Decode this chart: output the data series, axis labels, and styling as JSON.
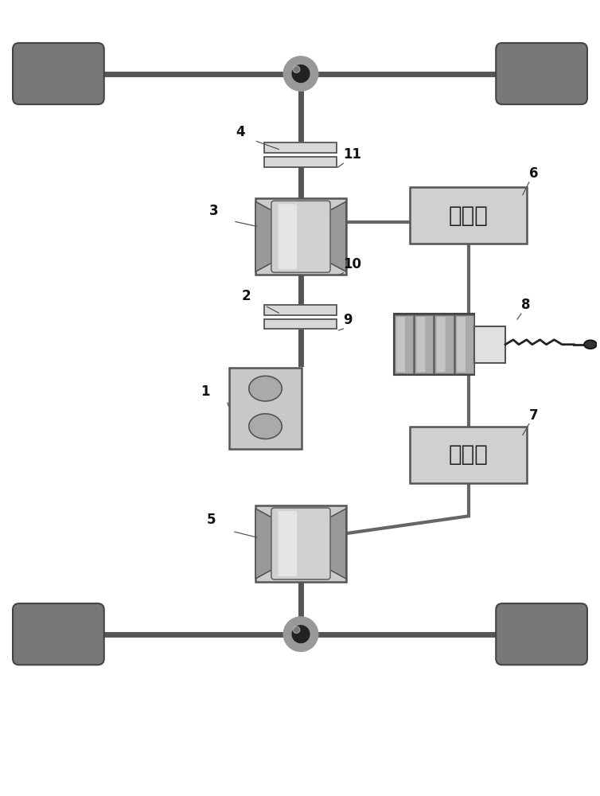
{
  "bg_color": "#ffffff",
  "wheel_color": "#787878",
  "axle_color": "#555555",
  "inverter_label": "逆变器",
  "shaft_color": "#555555",
  "wire_color": "#666666",
  "border_color": "#555555",
  "motor_box_color": "#cccccc",
  "motor_magnet_color": "#999999",
  "motor_rotor_color": "#d0d0d0",
  "clutch_color": "#d8d8d8",
  "inverter_color": "#d0d0d0",
  "engine_color": "#c8c8c8",
  "engine_oval_color": "#aaaaaa",
  "gen_dark": "#505050",
  "gen_coil": "#aaaaaa",
  "gen_term": "#e0e0e0",
  "diff_outer": "#999999",
  "diff_inner": "#222222"
}
